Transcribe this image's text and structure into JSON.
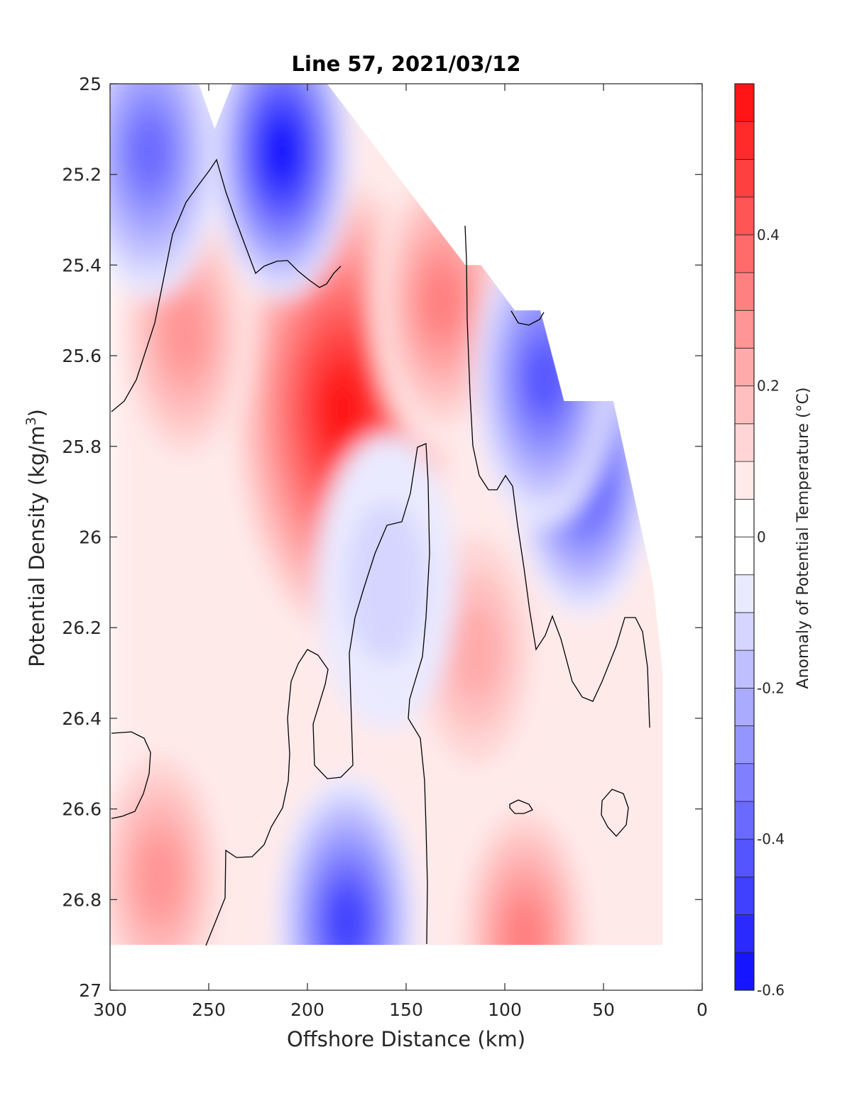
{
  "chart_data": {
    "type": "heatmap",
    "title": "Line 57, 2021/03/12",
    "xlabel": "Offshore Distance (km)",
    "ylabel_main": "Potential Density (kg/m",
    "ylabel_sup": "3",
    "ylabel_close": ")",
    "colorbar_label": "Anomaly of Potential Temperature (°C)",
    "xlim": [
      300,
      0
    ],
    "ylim": [
      25,
      27
    ],
    "x_ticks": [
      "300",
      "250",
      "200",
      "150",
      "100",
      "50",
      "0"
    ],
    "y_ticks": [
      "25",
      "25.2",
      "25.4",
      "25.6",
      "25.8",
      "26",
      "26.2",
      "26.4",
      "26.6",
      "26.8",
      "27"
    ],
    "colorbar": {
      "range": [
        -0.6,
        0.6
      ],
      "step": 0.05,
      "ticks": [
        "0.4",
        "0.2",
        "0",
        "-0.2",
        "-0.4",
        "-0.6"
      ],
      "colormap": "blue-white-red",
      "min_color": "#0000ff",
      "zero_color": "#ffffff",
      "max_color": "#ff0000"
    },
    "zero_contour_color": "#000000",
    "data_extent": {
      "density_top_by_distance": {
        "distance_km": [
          300,
          255,
          247,
          238,
          190,
          120,
          112,
          95,
          82,
          70,
          45,
          25,
          20
        ],
        "density": [
          25.0,
          25.0,
          25.1,
          25.0,
          25.0,
          25.4,
          25.4,
          25.5,
          25.5,
          25.7,
          25.7,
          26.1,
          26.3
        ]
      },
      "density_bottom": 26.9
    },
    "features": [
      {
        "kind": "warm core",
        "distance_km": 182,
        "density": 25.72,
        "value": 0.55
      },
      {
        "kind": "warm",
        "distance_km": 132,
        "density": 25.48,
        "value": 0.3
      },
      {
        "kind": "warm",
        "distance_km": 262,
        "density": 25.55,
        "value": 0.25
      },
      {
        "kind": "warm",
        "distance_km": 275,
        "density": 26.75,
        "value": 0.25
      },
      {
        "kind": "warm",
        "distance_km": 90,
        "density": 26.88,
        "value": 0.3
      },
      {
        "kind": "warm",
        "distance_km": 115,
        "density": 26.25,
        "value": 0.2
      },
      {
        "kind": "cold",
        "distance_km": 213,
        "density": 25.15,
        "value": -0.55
      },
      {
        "kind": "cold",
        "distance_km": 280,
        "density": 25.15,
        "value": -0.35
      },
      {
        "kind": "cold",
        "distance_km": 60,
        "density": 25.85,
        "value": -0.45
      },
      {
        "kind": "cold",
        "distance_km": 80,
        "density": 25.65,
        "value": -0.4
      },
      {
        "kind": "cold",
        "distance_km": 180,
        "density": 26.85,
        "value": -0.45
      },
      {
        "kind": "cold",
        "distance_km": 160,
        "density": 26.1,
        "value": -0.1
      }
    ]
  }
}
